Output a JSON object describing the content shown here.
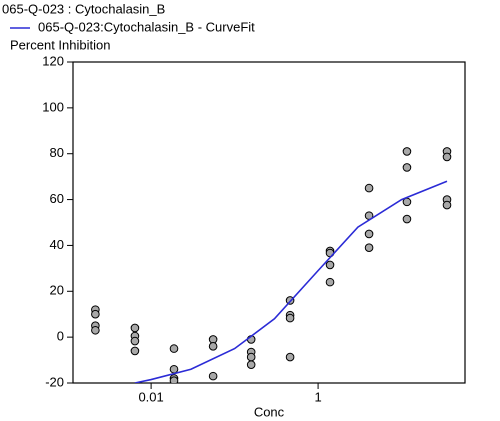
{
  "chart_data": {
    "type": "scatter",
    "ylabel": "Percent Inhibition",
    "xlabel": "Conc",
    "xscale": "log",
    "xlim": [
      0.00116,
      57.5
    ],
    "xticks": [
      0.01,
      1
    ],
    "ylim": [
      -20,
      120
    ],
    "yticks": [
      -20,
      0,
      20,
      40,
      60,
      80,
      100,
      120
    ],
    "series": [
      {
        "name": "065-Q-023 : Cytochalasin_B",
        "color": "#a8a8a8",
        "x": [
          0.00215,
          0.00215,
          0.00215,
          0.00215,
          0.0064,
          0.0064,
          0.0064,
          0.0064,
          0.0188,
          0.0188,
          0.0188,
          0.0188,
          0.0553,
          0.0553,
          0.0553,
          0.158,
          0.158,
          0.158,
          0.158,
          0.462,
          0.462,
          0.462,
          0.462,
          1.39,
          1.39,
          1.39,
          1.39,
          4.08,
          4.08,
          4.08,
          4.08,
          11.6,
          11.6,
          11.6,
          11.6,
          35,
          35,
          35,
          35
        ],
        "values": [
          12,
          10,
          5,
          3,
          4,
          0.5,
          -1.7,
          -6,
          -5,
          -14,
          -18,
          -19,
          -1,
          -4,
          -17,
          -1,
          -6.5,
          -8.7,
          -12,
          16,
          9.6,
          8.3,
          -8.7,
          37.6,
          36.7,
          31.5,
          24,
          65,
          53,
          45,
          39,
          81,
          74,
          59,
          51.5,
          81,
          78.6,
          60,
          57.6
        ]
      },
      {
        "name": "065-Q-023:Cytochalasin_B - CurveFit",
        "color": "#2b2bd6",
        "type": "line",
        "x": [
          0.0064,
          0.01,
          0.03,
          0.1,
          0.3,
          1,
          3,
          10,
          35
        ],
        "values": [
          -20,
          -18.5,
          -14,
          -5,
          8,
          29,
          48,
          60,
          68
        ]
      }
    ]
  }
}
